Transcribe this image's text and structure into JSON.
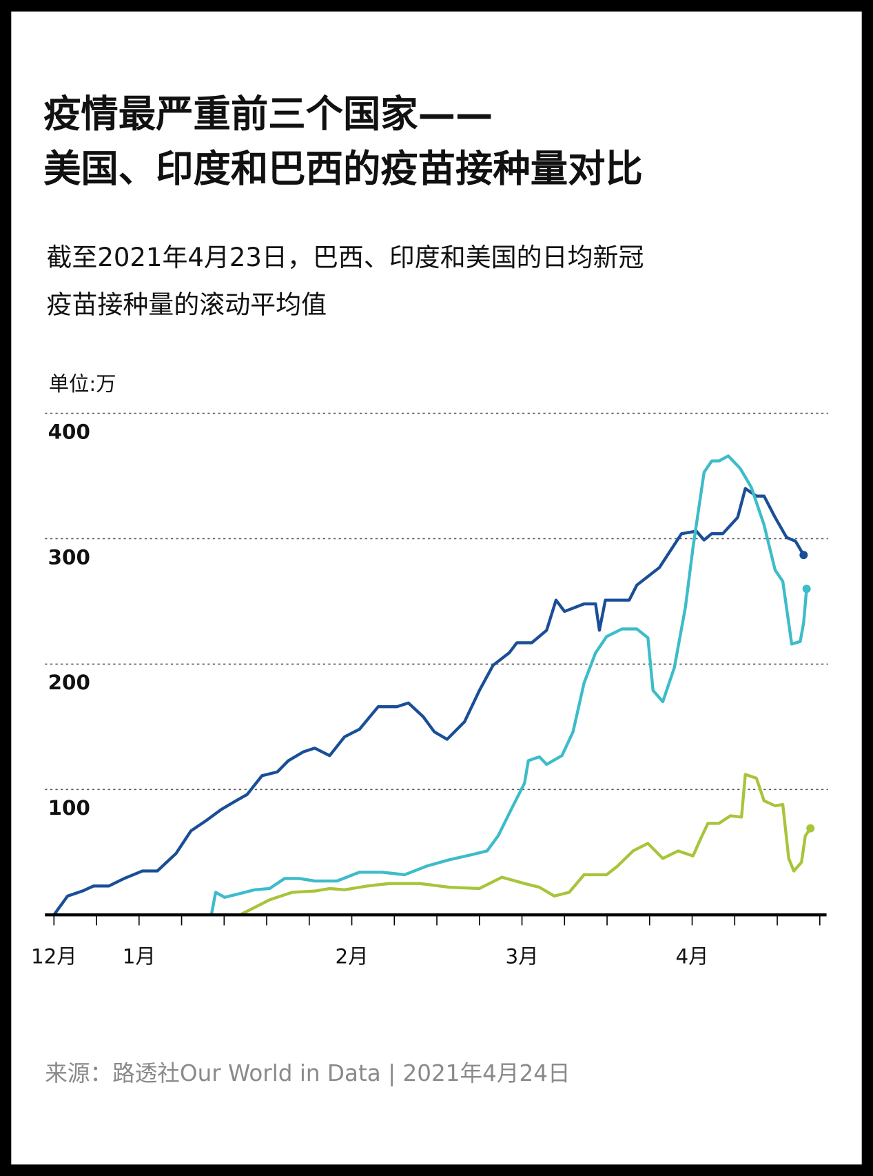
{
  "chart_data": {
    "type": "line",
    "title": [
      "疫情最严重前三个国家——",
      "美国、印度和巴西的疫苗接种量对比"
    ],
    "subtitle": [
      "截至2021年4月23日，巴西、印度和美国的日均新冠",
      "疫苗接种量的滚动平均值"
    ],
    "y_unit": "单位:万",
    "source": "来源：路透社Our World in Data | 2021年4月24日",
    "xlim": [
      0,
      18
    ],
    "xticks": [
      {
        "value": 0,
        "label": "12月"
      },
      {
        "value": 2,
        "label": "1月"
      },
      {
        "value": 7,
        "label": "2月"
      },
      {
        "value": 11,
        "label": "3月"
      },
      {
        "value": 15,
        "label": "4月"
      }
    ],
    "xminor": [
      0,
      1,
      2,
      3,
      4,
      5,
      6,
      7,
      8,
      9,
      10,
      11,
      12,
      13,
      14,
      15,
      16,
      17,
      18
    ],
    "ylim": [
      0,
      400
    ],
    "yticks": [
      100,
      200,
      300,
      400
    ],
    "grid": true,
    "series": [
      {
        "color": "#1a4e97",
        "x": [
          0,
          0.32,
          0.67,
          0.93,
          1.29,
          1.65,
          2.08,
          2.43,
          2.87,
          3.22,
          3.57,
          3.93,
          4.28,
          4.54,
          4.89,
          5.25,
          5.51,
          5.86,
          6.13,
          6.48,
          6.83,
          7.18,
          7.62,
          8.06,
          8.33,
          8.68,
          8.94,
          9.24,
          9.65,
          10.0,
          10.32,
          10.7,
          10.88,
          11.23,
          11.58,
          11.8,
          12.0,
          12.46,
          12.73,
          12.82,
          12.96,
          13.52,
          13.7,
          14.23,
          14.75,
          15.1,
          15.28,
          15.46,
          15.72,
          16.07,
          16.25,
          16.51,
          16.69,
          16.95,
          17.22,
          17.43,
          17.62
        ],
        "values": [
          0,
          15,
          19,
          23,
          23,
          29,
          35,
          35,
          49,
          67,
          75,
          84,
          91,
          96,
          111,
          114,
          123,
          130,
          133,
          127,
          142,
          148,
          166,
          166,
          169,
          158,
          146,
          140,
          154,
          179,
          199,
          209,
          217,
          217,
          227,
          251,
          242,
          248,
          248,
          227,
          251,
          251,
          263,
          277,
          304,
          306,
          299,
          304,
          304,
          317,
          340,
          334,
          334,
          317,
          301,
          298,
          287
        ]
      },
      {
        "color": "#3dbcc9",
        "x": [
          3.7,
          3.8,
          4.01,
          4.37,
          4.72,
          5.07,
          5.42,
          5.77,
          6.13,
          6.65,
          7.18,
          7.71,
          8.24,
          8.77,
          9.3,
          9.82,
          10.18,
          10.44,
          10.79,
          11.06,
          11.15,
          11.41,
          11.58,
          11.94,
          12.2,
          12.46,
          12.73,
          12.99,
          13.35,
          13.7,
          13.96,
          14.08,
          14.31,
          14.58,
          14.84,
          15.02,
          15.28,
          15.46,
          15.63,
          15.85,
          16.13,
          16.39,
          16.69,
          16.95,
          17.13,
          17.34,
          17.54,
          17.62,
          17.69
        ],
        "values": [
          0,
          18,
          14,
          17,
          20,
          21,
          29,
          29,
          27,
          27,
          34,
          34,
          32,
          39,
          44,
          48,
          51,
          63,
          87,
          105,
          123,
          126,
          120,
          127,
          146,
          185,
          209,
          222,
          228,
          228,
          221,
          179,
          170,
          197,
          245,
          293,
          353,
          362,
          362,
          366,
          356,
          341,
          311,
          275,
          266,
          216,
          218,
          233,
          260
        ]
      },
      {
        "color": "#a8c43a",
        "x": [
          4.37,
          4.72,
          5.07,
          5.6,
          6.13,
          6.48,
          6.83,
          7.36,
          7.89,
          8.59,
          9.3,
          10.0,
          10.53,
          11.06,
          11.41,
          11.76,
          12.11,
          12.46,
          12.99,
          13.25,
          13.61,
          13.96,
          14.31,
          14.67,
          15.02,
          15.19,
          15.37,
          15.63,
          15.9,
          16.16,
          16.25,
          16.51,
          16.69,
          16.95,
          17.13,
          17.27,
          17.39,
          17.57,
          17.66,
          17.78
        ],
        "values": [
          0,
          6,
          12,
          18,
          19,
          21,
          20,
          23,
          25,
          25,
          22,
          21,
          30,
          25,
          22,
          15,
          18,
          32,
          32,
          39,
          51,
          57,
          45,
          51,
          47,
          60,
          73,
          73,
          79,
          78,
          112,
          109,
          91,
          87,
          88,
          45,
          35,
          42,
          63,
          69
        ]
      }
    ]
  }
}
